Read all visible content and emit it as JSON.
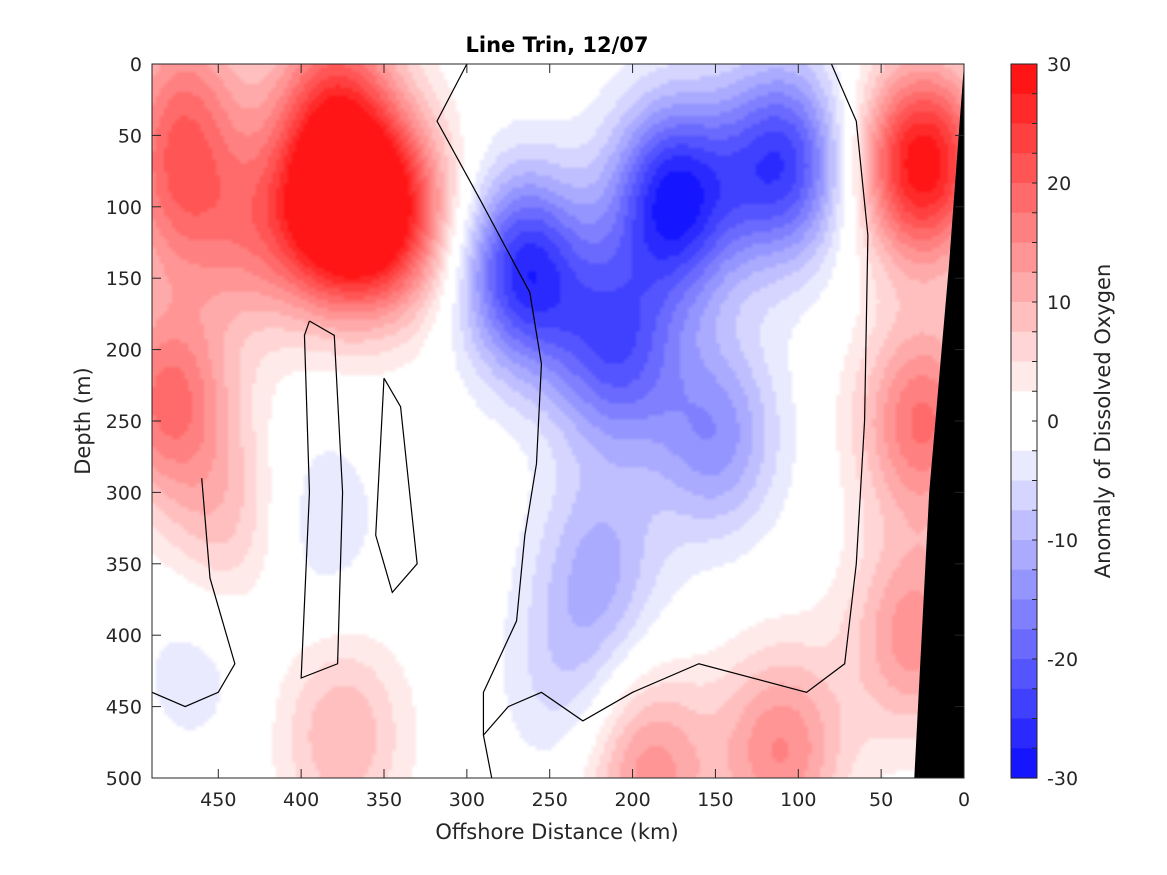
{
  "chart_data": {
    "type": "heatmap",
    "title": "Line Trin, 12/07",
    "xlabel": "Offshore Distance (km)",
    "ylabel": "Depth (m)",
    "colorbar_label": "Anomaly of Dissolved Oxygen",
    "xlim": [
      490,
      0
    ],
    "x_reversed": true,
    "ylim": [
      0,
      500
    ],
    "y_reversed": true,
    "x_ticks": [
      450,
      400,
      350,
      300,
      250,
      200,
      150,
      100,
      50,
      0
    ],
    "y_ticks": [
      0,
      50,
      100,
      150,
      200,
      250,
      300,
      350,
      400,
      450,
      500
    ],
    "colorbar_range": [
      -30,
      30
    ],
    "colorbar_ticks": [
      30,
      20,
      10,
      0,
      -10,
      -20,
      -30
    ],
    "contour_step": 2.5,
    "colormap": {
      "positive": "#ff0000",
      "zero": "#ffffff",
      "negative": "#0000ff"
    },
    "bathymetry_color": "#000000",
    "bathymetry_edge": [
      [
        0,
        0
      ],
      [
        9,
        140
      ],
      [
        21,
        300
      ],
      [
        30,
        500
      ]
    ],
    "grid": false,
    "field_anomalies": [
      {
        "center_km": 380,
        "center_depth": 100,
        "value": 30
      },
      {
        "center_km": 345,
        "center_depth": 105,
        "value": 22
      },
      {
        "center_km": 380,
        "center_depth": 20,
        "value": 16
      },
      {
        "center_km": 475,
        "center_depth": 90,
        "value": 14
      },
      {
        "center_km": 480,
        "center_depth": 235,
        "value": 18
      },
      {
        "center_km": 430,
        "center_depth": 120,
        "value": 10
      },
      {
        "center_km": 470,
        "center_depth": 20,
        "value": 12
      },
      {
        "center_km": 25,
        "center_depth": 70,
        "value": 30
      },
      {
        "center_km": 25,
        "center_depth": 250,
        "value": 18
      },
      {
        "center_km": 30,
        "center_depth": 400,
        "value": 14
      },
      {
        "center_km": 110,
        "center_depth": 480,
        "value": 15
      },
      {
        "center_km": 190,
        "center_depth": 495,
        "value": 14
      },
      {
        "center_km": 375,
        "center_depth": 470,
        "value": 10
      },
      {
        "center_km": 445,
        "center_depth": 320,
        "value": 8
      },
      {
        "center_km": 175,
        "center_depth": 95,
        "value": -28
      },
      {
        "center_km": 265,
        "center_depth": 145,
        "value": -26
      },
      {
        "center_km": 110,
        "center_depth": 70,
        "value": -24
      },
      {
        "center_km": 210,
        "center_depth": 200,
        "value": -20
      },
      {
        "center_km": 150,
        "center_depth": 260,
        "value": -14
      },
      {
        "center_km": 220,
        "center_depth": 350,
        "value": -10
      },
      {
        "center_km": 240,
        "center_depth": 430,
        "value": -6
      },
      {
        "center_km": 390,
        "center_depth": 320,
        "value": -5
      },
      {
        "center_km": 465,
        "center_depth": 420,
        "value": -4
      }
    ],
    "zero_contours": [
      [
        [
          300,
          0
        ],
        [
          318,
          40
        ],
        [
          292,
          95
        ],
        [
          262,
          160
        ],
        [
          255,
          210
        ],
        [
          258,
          280
        ],
        [
          265,
          330
        ],
        [
          270,
          390
        ],
        [
          290,
          440
        ],
        [
          290,
          470
        ],
        [
          285,
          500
        ]
      ],
      [
        [
          80,
          0
        ],
        [
          65,
          40
        ],
        [
          58,
          120
        ],
        [
          60,
          250
        ],
        [
          65,
          350
        ],
        [
          72,
          420
        ],
        [
          95,
          440
        ],
        [
          160,
          420
        ],
        [
          200,
          440
        ],
        [
          230,
          460
        ],
        [
          255,
          440
        ],
        [
          275,
          450
        ],
        [
          290,
          470
        ]
      ],
      [
        [
          395,
          180
        ],
        [
          380,
          190
        ],
        [
          375,
          300
        ],
        [
          378,
          420
        ],
        [
          400,
          430
        ],
        [
          395,
          300
        ],
        [
          398,
          190
        ],
        [
          395,
          180
        ]
      ],
      [
        [
          460,
          290
        ],
        [
          455,
          360
        ],
        [
          440,
          420
        ],
        [
          450,
          440
        ],
        [
          470,
          450
        ],
        [
          490,
          440
        ]
      ],
      [
        [
          350,
          220
        ],
        [
          355,
          330
        ],
        [
          345,
          370
        ],
        [
          330,
          350
        ],
        [
          340,
          240
        ],
        [
          350,
          220
        ]
      ]
    ]
  }
}
